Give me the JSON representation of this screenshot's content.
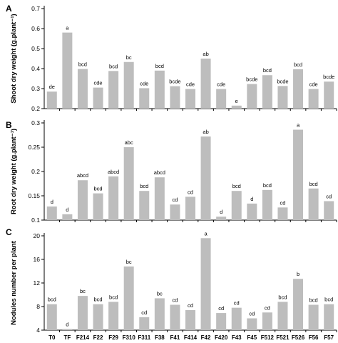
{
  "chart_data": [
    {
      "type": "bar",
      "panel": "A",
      "ylabel": "Shoot dry weight (g.plant⁻¹)",
      "ylim": [
        0.2,
        0.7
      ],
      "yticks": [
        "0.2",
        "0.3",
        "0.4",
        "0.5",
        "0.6",
        "0.7"
      ],
      "categories": [
        "T0",
        "TF",
        "F214",
        "F22",
        "F29",
        "F310",
        "F311",
        "F38",
        "F41",
        "F414",
        "F42",
        "F420",
        "F43",
        "F45",
        "F512",
        "F521",
        "F526",
        "F56",
        "F57"
      ],
      "values": [
        0.285,
        0.58,
        0.398,
        0.305,
        0.388,
        0.433,
        0.302,
        0.39,
        0.312,
        0.298,
        0.45,
        0.298,
        0.215,
        0.323,
        0.367,
        0.313,
        0.397,
        0.298,
        0.335
      ],
      "letters": [
        "de",
        "a",
        "bcd",
        "cde",
        "bcd",
        "bc",
        "cde",
        "bcd",
        "bcde",
        "cde",
        "ab",
        "cde",
        "e",
        "bcde",
        "bcd",
        "bcde",
        "bcd",
        "cde",
        "bcde"
      ],
      "show_xticklabels": false
    },
    {
      "type": "bar",
      "panel": "B",
      "ylabel": "Root dry weight (g.plant⁻¹)",
      "ylim": [
        0.1,
        0.3
      ],
      "yticks": [
        "0.1",
        "0.15",
        "0.2",
        "0.25",
        "0.3"
      ],
      "categories": [
        "T0",
        "TF",
        "F214",
        "F22",
        "F29",
        "F310",
        "F311",
        "F38",
        "F41",
        "F414",
        "F42",
        "F420",
        "F43",
        "F45",
        "F512",
        "F521",
        "F526",
        "F56",
        "F57"
      ],
      "values": [
        0.128,
        0.112,
        0.182,
        0.155,
        0.19,
        0.25,
        0.16,
        0.188,
        0.132,
        0.148,
        0.272,
        0.107,
        0.16,
        0.134,
        0.162,
        0.126,
        0.286,
        0.165,
        0.139
      ],
      "letters": [
        "d",
        "d",
        "abcd",
        "bcd",
        "abcd",
        "abc",
        "bcd",
        "abcd",
        "cd",
        "cd",
        "ab",
        "d",
        "bcd",
        "d",
        "bcd",
        "cd",
        "a",
        "bcd",
        "cd"
      ],
      "show_xticklabels": false
    },
    {
      "type": "bar",
      "panel": "C",
      "ylabel": "Nodules number per plant",
      "ylim": [
        4,
        20
      ],
      "yticks": [
        "4",
        "8",
        "12",
        "16",
        "20"
      ],
      "categories": [
        "T0",
        "TF",
        "F214",
        "F22",
        "F29",
        "F310",
        "F311",
        "F38",
        "F41",
        "F414",
        "F42",
        "F420",
        "F43",
        "F45",
        "F512",
        "F521",
        "F526",
        "F56",
        "F57"
      ],
      "values": [
        8.4,
        4.2,
        9.8,
        8.4,
        8.8,
        14.8,
        6.2,
        9.4,
        8.3,
        7.4,
        19.6,
        6.9,
        7.8,
        6.0,
        7.0,
        8.8,
        12.7,
        8.3,
        8.4
      ],
      "letters": [
        "bcd",
        "d",
        "bc",
        "bcd",
        "bcd",
        "bc",
        "cd",
        "bc",
        "cd",
        "cd",
        "a",
        "cd",
        "cd",
        "cd",
        "cd",
        "bcd",
        "b",
        "bcd",
        "bcd"
      ],
      "show_xticklabels": true
    }
  ]
}
